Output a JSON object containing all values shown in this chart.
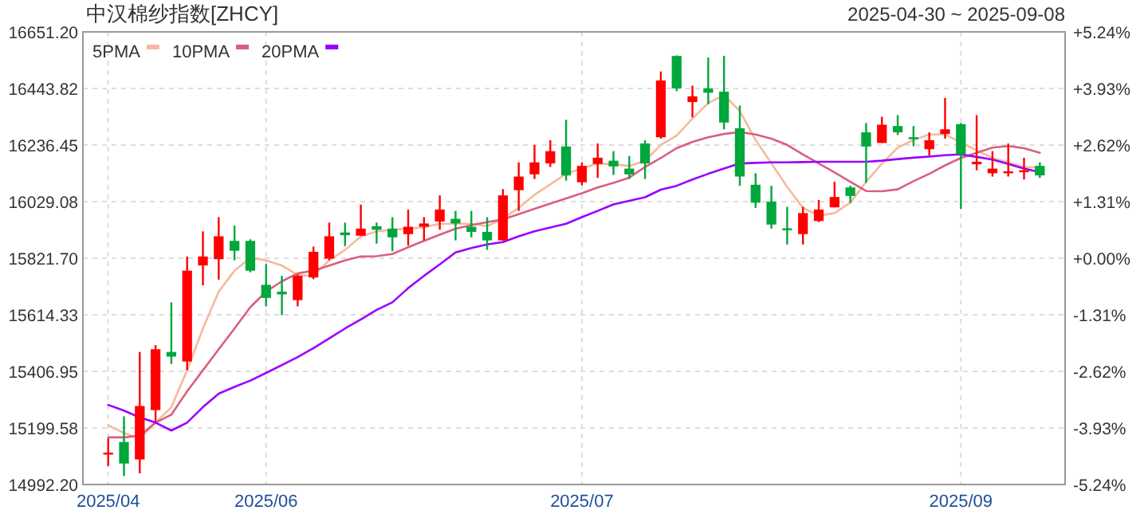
{
  "chart_data": {
    "type": "candlestick",
    "title": "中汉棉纱指数[ZHCY]",
    "subtitle": "2025-04-30 ~ 2025-09-08",
    "categories": [
      "2025/04",
      null,
      null,
      null,
      null,
      null,
      null,
      null,
      null,
      null,
      "2025/06",
      null,
      null,
      null,
      null,
      null,
      null,
      null,
      null,
      null,
      null,
      null,
      null,
      null,
      null,
      null,
      null,
      null,
      null,
      null,
      "2025/07",
      null,
      null,
      null,
      null,
      null,
      null,
      null,
      null,
      null,
      null,
      null,
      null,
      null,
      null,
      null,
      null,
      null,
      null,
      null,
      null,
      null,
      null,
      null,
      "2025/09",
      null,
      null,
      null,
      null,
      null
    ],
    "ohlc": [
      [
        15105,
        15161,
        15060,
        15109
      ],
      [
        15148,
        15242,
        15023,
        15069
      ],
      [
        15084,
        15478,
        15033,
        15280
      ],
      [
        15265,
        15503,
        15223,
        15488
      ],
      [
        15478,
        15660,
        15434,
        15461
      ],
      [
        15443,
        15828,
        15411,
        15776
      ],
      [
        15795,
        15920,
        15722,
        15828
      ],
      [
        15818,
        15972,
        15743,
        15902
      ],
      [
        15885,
        15941,
        15814,
        15849
      ],
      [
        15885,
        15891,
        15770,
        15776
      ],
      [
        15724,
        15800,
        15645,
        15676
      ],
      [
        15699,
        15757,
        15613,
        15689
      ],
      [
        15668,
        15762,
        15645,
        15757
      ],
      [
        15751,
        15864,
        15745,
        15845
      ],
      [
        15820,
        15952,
        15814,
        15902
      ],
      [
        15916,
        15952,
        15866,
        15906
      ],
      [
        15904,
        16018,
        15904,
        15930
      ],
      [
        15939,
        15952,
        15875,
        15926
      ],
      [
        15930,
        15972,
        15847,
        15898
      ],
      [
        15910,
        16000,
        15868,
        15937
      ],
      [
        15937,
        15972,
        15887,
        15949
      ],
      [
        15956,
        16052,
        15926,
        16000
      ],
      [
        15966,
        15995,
        15887,
        15949
      ],
      [
        15937,
        15995,
        15898,
        15918
      ],
      [
        15918,
        15972,
        15852,
        15887
      ],
      [
        15887,
        16075,
        15887,
        16052
      ],
      [
        16071,
        16173,
        15995,
        16121
      ],
      [
        16129,
        16237,
        16112,
        16173
      ],
      [
        16169,
        16254,
        16156,
        16214
      ],
      [
        16231,
        16329,
        16106,
        16125
      ],
      [
        16100,
        16173,
        16089,
        16160
      ],
      [
        16167,
        16242,
        16116,
        16190
      ],
      [
        16179,
        16214,
        16127,
        16158
      ],
      [
        16150,
        16196,
        16112,
        16129
      ],
      [
        16242,
        16254,
        16112,
        16169
      ],
      [
        16265,
        16506,
        16260,
        16473
      ],
      [
        16563,
        16565,
        16434,
        16444
      ],
      [
        16394,
        16454,
        16338,
        16415
      ],
      [
        16444,
        16557,
        16386,
        16428
      ],
      [
        16432,
        16563,
        16294,
        16319
      ],
      [
        16298,
        16381,
        16087,
        16121
      ],
      [
        16091,
        16133,
        16006,
        16025
      ],
      [
        16029,
        16087,
        15930,
        15945
      ],
      [
        15931,
        16010,
        15872,
        15924
      ],
      [
        15910,
        16010,
        15872,
        15987
      ],
      [
        15958,
        16035,
        15954,
        16000
      ],
      [
        16008,
        16102,
        16008,
        16046
      ],
      [
        16081,
        16087,
        16025,
        16050
      ],
      [
        16283,
        16317,
        16098,
        16231
      ],
      [
        16244,
        16340,
        16244,
        16311
      ],
      [
        16306,
        16346,
        16273,
        16283
      ],
      [
        16265,
        16306,
        16232,
        16261
      ],
      [
        16221,
        16283,
        16198,
        16254
      ],
      [
        16277,
        16409,
        16260,
        16294
      ],
      [
        16313,
        16317,
        16002,
        16202
      ],
      [
        16166,
        16346,
        16144,
        16175
      ],
      [
        16133,
        16214,
        16121,
        16150
      ],
      [
        16135,
        16242,
        16121,
        16140
      ],
      [
        16139,
        16190,
        16110,
        16144
      ],
      [
        16160,
        16173,
        16116,
        16125
      ]
    ],
    "colors": [
      "#ff0000",
      "#00a73c",
      "#ff0000",
      "#ff0000",
      "#00a73c",
      "#ff0000",
      "#ff0000",
      "#ff0000",
      "#00a73c",
      "#00a73c",
      "#00a73c",
      "#00a73c",
      "#ff0000",
      "#ff0000",
      "#ff0000",
      "#00a73c",
      "#ff0000",
      "#00a73c",
      "#00a73c",
      "#ff0000",
      "#ff0000",
      "#ff0000",
      "#00a73c",
      "#00a73c",
      "#00a73c",
      "#ff0000",
      "#ff0000",
      "#ff0000",
      "#ff0000",
      "#00a73c",
      "#ff0000",
      "#ff0000",
      "#00a73c",
      "#00a73c",
      "#00a73c",
      "#ff0000",
      "#00a73c",
      "#ff0000",
      "#00a73c",
      "#00a73c",
      "#00a73c",
      "#00a73c",
      "#00a73c",
      "#00a73c",
      "#ff0000",
      "#ff0000",
      "#ff0000",
      "#00a73c",
      "#00a73c",
      "#ff0000",
      "#00a73c",
      "#00a73c",
      "#ff0000",
      "#ff0000",
      "#00a73c",
      "#ff0000",
      "#ff0000",
      "#ff0000",
      "#ff0000",
      "#00a73c"
    ],
    "series": [
      {
        "name": "5PMA",
        "type": "line",
        "color": "#f7b99b",
        "values": [
          15209,
          15181,
          15161,
          15219,
          15276,
          15411,
          15564,
          15699,
          15776,
          15823,
          15814,
          15795,
          15760,
          15757,
          15814,
          15852,
          15901,
          15920,
          15926,
          15930,
          15935,
          15948,
          15948,
          15948,
          15939,
          15967,
          16006,
          16054,
          16092,
          16131,
          16150,
          16169,
          16166,
          16160,
          16179,
          16237,
          16271,
          16333,
          16390,
          16419,
          16361,
          16255,
          16169,
          16083,
          16006,
          15977,
          15987,
          16025,
          16102,
          16169,
          16227,
          16255,
          16275,
          16275,
          16246,
          16217,
          16189,
          16173,
          16156,
          16154
        ]
      },
      {
        "name": "10PMA",
        "type": "line",
        "color": "#d9607e",
        "values": [
          15165,
          15165,
          15171,
          15219,
          15248,
          15334,
          15411,
          15488,
          15564,
          15642,
          15699,
          15737,
          15766,
          15776,
          15795,
          15814,
          15828,
          15829,
          15837,
          15862,
          15885,
          15908,
          15930,
          15943,
          15954,
          15964,
          15983,
          16003,
          16022,
          16041,
          16060,
          16081,
          16098,
          16117,
          16156,
          16189,
          16225,
          16248,
          16265,
          16277,
          16284,
          16275,
          16260,
          16237,
          16202,
          16169,
          16136,
          16102,
          16068,
          16067,
          16074,
          16104,
          16131,
          16162,
          16189,
          16208,
          16227,
          16233,
          16225,
          16208
        ]
      },
      {
        "name": "20PMA",
        "type": "line",
        "color": "#9900ff",
        "values": [
          15284,
          15263,
          15238,
          15219,
          15190,
          15219,
          15276,
          15325,
          15350,
          15373,
          15401,
          15430,
          15459,
          15492,
          15528,
          15564,
          15597,
          15632,
          15660,
          15712,
          15757,
          15799,
          15843,
          15859,
          15872,
          15881,
          15902,
          15920,
          15934,
          15948,
          15972,
          15995,
          16019,
          16032,
          16045,
          16073,
          16087,
          16110,
          16131,
          16150,
          16169,
          16171,
          16173,
          16173,
          16174,
          16175,
          16175,
          16175,
          16175,
          16179,
          16185,
          16190,
          16194,
          16199,
          16202,
          16193,
          16183,
          16167,
          16150,
          16137
        ]
      }
    ],
    "ylim": [
      14992.2,
      16651.2
    ],
    "yticks": [
      {
        "value": 14992.2,
        "label": "14992.20"
      },
      {
        "value": 15199.58,
        "label": "15199.58"
      },
      {
        "value": 15406.95,
        "label": "15406.95"
      },
      {
        "value": 15614.33,
        "label": "15614.33"
      },
      {
        "value": 15821.7,
        "label": "15821.70"
      },
      {
        "value": 16029.08,
        "label": "16029.08"
      },
      {
        "value": 16236.45,
        "label": "16236.45"
      },
      {
        "value": 16443.82,
        "label": "16443.82"
      },
      {
        "value": 16651.2,
        "label": "16651.20"
      }
    ],
    "y2lim": [
      -5.24,
      5.24
    ],
    "y2ticks": [
      {
        "value": 5.24,
        "label": "+5.24%"
      },
      {
        "value": 3.93,
        "label": "+3.93%"
      },
      {
        "value": 2.62,
        "label": "+2.62%"
      },
      {
        "value": 1.31,
        "label": "+1.31%"
      },
      {
        "value": 0,
        "label": "+0.00%"
      },
      {
        "value": -1.31,
        "label": "-1.31%"
      },
      {
        "value": -2.62,
        "label": "-2.62%"
      },
      {
        "value": -3.93,
        "label": "-3.93%"
      },
      {
        "value": -5.24,
        "label": "-5.24%"
      }
    ],
    "grid": true,
    "legend": "top left"
  }
}
